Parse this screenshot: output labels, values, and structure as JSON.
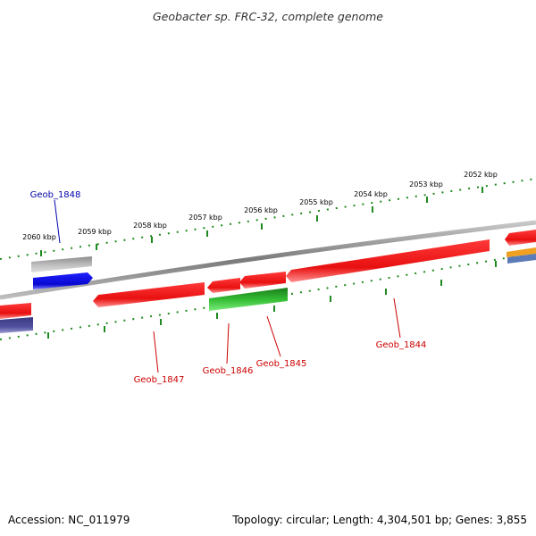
{
  "title": "Geobacter sp. FRC-32, complete genome",
  "footer": {
    "accession": "Accession: NC_011979",
    "summary": "Topology: circular; Length: 4,304,501 bp; Genes: 3,855"
  },
  "colors": {
    "backbone": "#8a8a8a",
    "ticks": "#1f8a1f",
    "red_gene": "#ee1c1c",
    "green_gene": "#2aa02a",
    "blue_gene": "#1010e0",
    "gray_gene": "#b8b8b8",
    "navy_gene": "#4a4a8c",
    "orange_gene": "#f0a020",
    "steel_gene": "#5a7ab8",
    "red_label": "#cc0000",
    "blue_label": "#0000aa"
  },
  "kbp_labels": [
    "2052 kbp",
    "2053 kbp",
    "2054 kbp",
    "2055 kbp",
    "2056 kbp",
    "2057 kbp",
    "2058 kbp",
    "2059 kbp",
    "2060 kbp"
  ],
  "gene_labels": [
    "Geob_1848",
    "Geob_1847",
    "Geob_1846",
    "Geob_1845",
    "Geob_1844"
  ]
}
